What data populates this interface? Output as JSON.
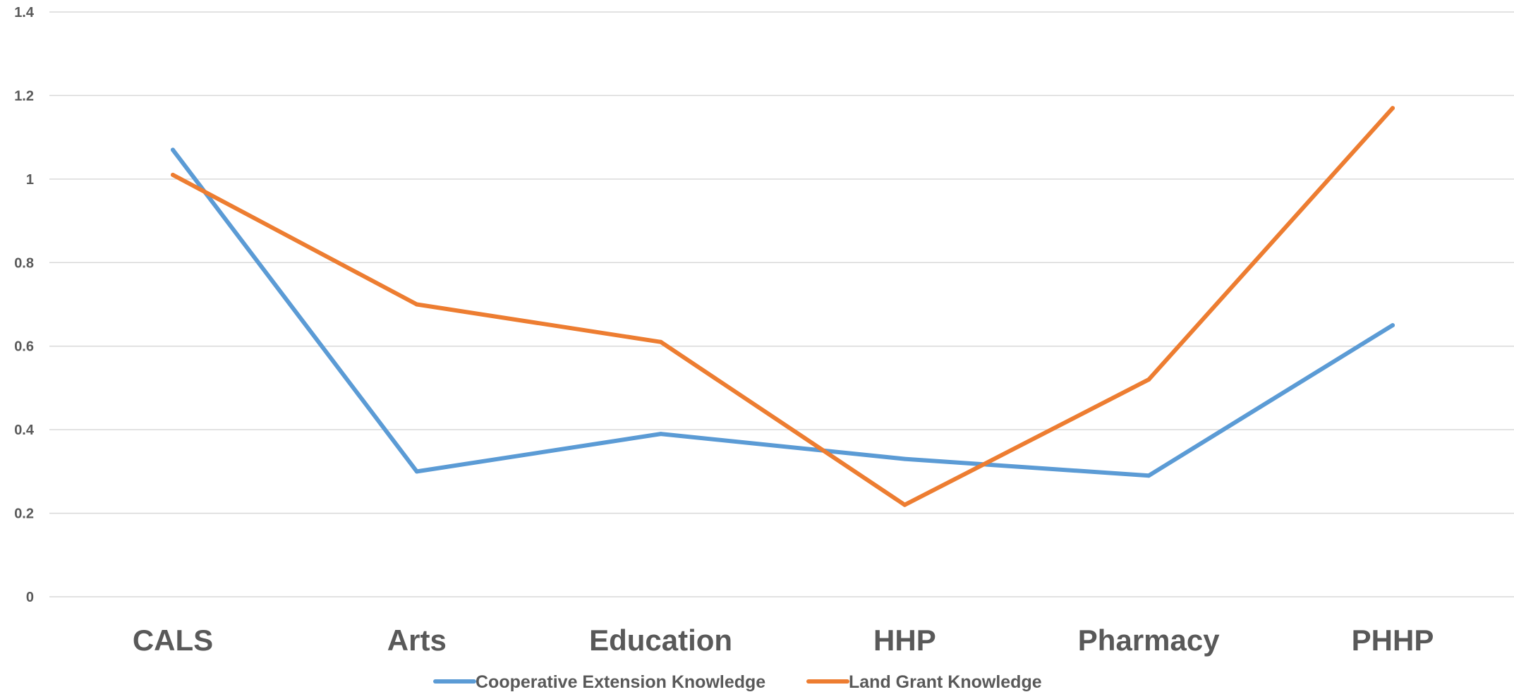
{
  "chart_data": {
    "type": "line",
    "title": "",
    "xlabel": "",
    "ylabel": "",
    "categories": [
      "CALS",
      "Arts",
      "Education",
      "HHP",
      "Pharmacy",
      "PHHP"
    ],
    "yticks": [
      "0",
      "0.2",
      "0.4",
      "0.6",
      "0.8",
      "1",
      "1.2",
      "1.4"
    ],
    "ylim": [
      0,
      1.4
    ],
    "grid": true,
    "legend_position": "bottom",
    "series": [
      {
        "name": "Cooperative Extension Knowledge",
        "color": "#5b9bd5",
        "values": [
          1.07,
          0.3,
          0.39,
          0.33,
          0.29,
          0.65
        ]
      },
      {
        "name": "Land Grant Knowledge",
        "color": "#ed7d31",
        "values": [
          1.01,
          0.7,
          0.61,
          0.22,
          0.52,
          1.17
        ]
      }
    ]
  }
}
